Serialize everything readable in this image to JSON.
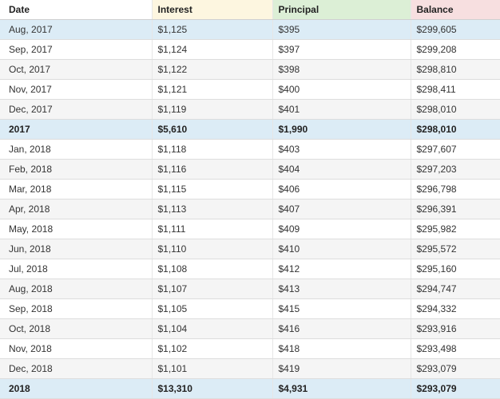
{
  "colors": {
    "date_header_bg": "#ffffff",
    "interest_header_bg": "#fdf6e0",
    "principal_header_bg": "#dcefd6",
    "balance_header_bg": "#f7dfe0",
    "highlight_row_bg": "#dcecf6",
    "total_row_bg": "#dcecf6"
  },
  "table": {
    "headers": [
      "Date",
      "Interest",
      "Principal",
      "Balance"
    ],
    "rows": [
      {
        "type": "highlight",
        "cells": [
          "Aug, 2017",
          "$1,125",
          "$395",
          "$299,605"
        ]
      },
      {
        "type": "normal",
        "cells": [
          "Sep, 2017",
          "$1,124",
          "$397",
          "$299,208"
        ]
      },
      {
        "type": "normal",
        "cells": [
          "Oct, 2017",
          "$1,122",
          "$398",
          "$298,810"
        ]
      },
      {
        "type": "normal",
        "cells": [
          "Nov, 2017",
          "$1,121",
          "$400",
          "$298,411"
        ]
      },
      {
        "type": "normal",
        "cells": [
          "Dec, 2017",
          "$1,119",
          "$401",
          "$298,010"
        ]
      },
      {
        "type": "total",
        "cells": [
          "2017",
          "$5,610",
          "$1,990",
          "$298,010"
        ]
      },
      {
        "type": "normal",
        "cells": [
          "Jan, 2018",
          "$1,118",
          "$403",
          "$297,607"
        ]
      },
      {
        "type": "normal",
        "cells": [
          "Feb, 2018",
          "$1,116",
          "$404",
          "$297,203"
        ]
      },
      {
        "type": "normal",
        "cells": [
          "Mar, 2018",
          "$1,115",
          "$406",
          "$296,798"
        ]
      },
      {
        "type": "normal",
        "cells": [
          "Apr, 2018",
          "$1,113",
          "$407",
          "$296,391"
        ]
      },
      {
        "type": "normal",
        "cells": [
          "May, 2018",
          "$1,111",
          "$409",
          "$295,982"
        ]
      },
      {
        "type": "normal",
        "cells": [
          "Jun, 2018",
          "$1,110",
          "$410",
          "$295,572"
        ]
      },
      {
        "type": "normal",
        "cells": [
          "Jul, 2018",
          "$1,108",
          "$412",
          "$295,160"
        ]
      },
      {
        "type": "normal",
        "cells": [
          "Aug, 2018",
          "$1,107",
          "$413",
          "$294,747"
        ]
      },
      {
        "type": "normal",
        "cells": [
          "Sep, 2018",
          "$1,105",
          "$415",
          "$294,332"
        ]
      },
      {
        "type": "normal",
        "cells": [
          "Oct, 2018",
          "$1,104",
          "$416",
          "$293,916"
        ]
      },
      {
        "type": "normal",
        "cells": [
          "Nov, 2018",
          "$1,102",
          "$418",
          "$293,498"
        ]
      },
      {
        "type": "normal",
        "cells": [
          "Dec, 2018",
          "$1,101",
          "$419",
          "$293,079"
        ]
      },
      {
        "type": "total",
        "cells": [
          "2018",
          "$13,310",
          "$4,931",
          "$293,079"
        ]
      }
    ]
  }
}
